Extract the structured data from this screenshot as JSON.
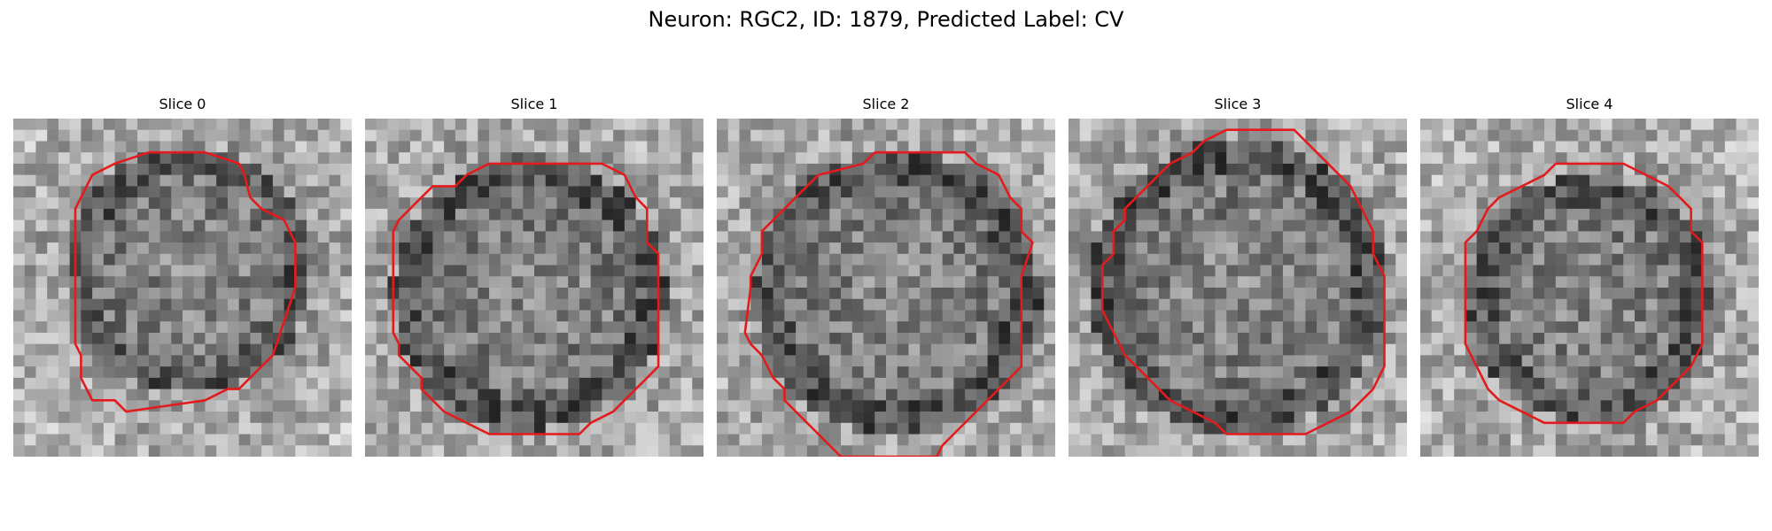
{
  "figure": {
    "title": "Neuron: RGC2, ID: 1879, Predicted Label: CV"
  },
  "colors": {
    "contour": "#e41a1c",
    "background": "#ffffff"
  },
  "slices": [
    {
      "title": "Slice 0"
    },
    {
      "title": "Slice 1"
    },
    {
      "title": "Slice 2"
    },
    {
      "title": "Slice 3"
    },
    {
      "title": "Slice 4"
    }
  ]
}
